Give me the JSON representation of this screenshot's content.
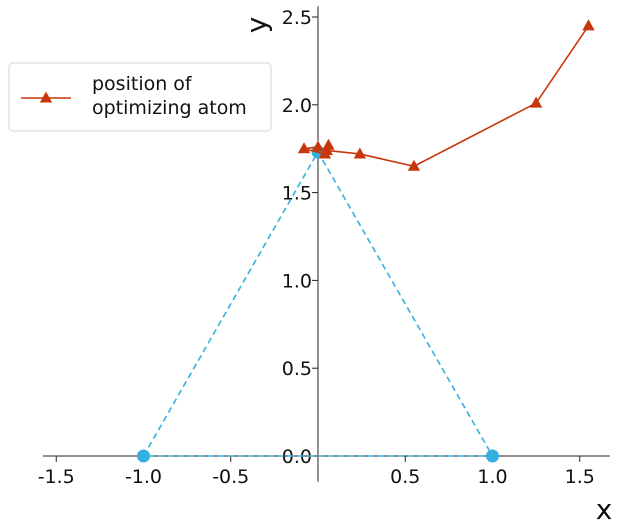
{
  "chart_data": {
    "type": "line",
    "title": "",
    "xlabel": "x",
    "ylabel": "y",
    "xlim": [
      -1.6,
      1.7
    ],
    "ylim": [
      -0.05,
      2.55
    ],
    "xticks": [
      -1.5,
      -1.0,
      -0.5,
      0.5,
      1.0,
      1.5
    ],
    "xtick_labels": [
      "-1.5",
      "-1.0",
      "-0.5",
      "0.5",
      "1.0",
      "1.5"
    ],
    "yticks": [
      0.0,
      0.5,
      1.0,
      1.5,
      2.0,
      2.5
    ],
    "ytick_labels": [
      "0.0",
      "0.5",
      "1.0",
      "1.5",
      "2.0",
      "2.5"
    ],
    "grid": false,
    "legend_position": "top-left",
    "series": [
      {
        "name": "position of\noptimizing atom",
        "color": "#c8360e",
        "marker": "triangle",
        "line_style": "solid",
        "points": [
          {
            "x": 1.55,
            "y": 2.45
          },
          {
            "x": 1.25,
            "y": 2.01
          },
          {
            "x": 0.55,
            "y": 1.65
          },
          {
            "x": 0.24,
            "y": 1.72
          },
          {
            "x": 0.05,
            "y": 1.74
          },
          {
            "x": 0.06,
            "y": 1.77
          },
          {
            "x": 0.04,
            "y": 1.72
          },
          {
            "x": -0.08,
            "y": 1.75
          },
          {
            "x": 0.0,
            "y": 1.76
          }
        ]
      },
      {
        "name": "",
        "color": "#33b0e0",
        "marker": "circle",
        "line_style": "dashed",
        "points": [
          {
            "x": -1.0,
            "y": 0.0
          },
          {
            "x": 0.0,
            "y": 1.732
          },
          {
            "x": 1.0,
            "y": 0.0
          },
          {
            "x": -1.0,
            "y": 0.0
          }
        ]
      }
    ]
  }
}
